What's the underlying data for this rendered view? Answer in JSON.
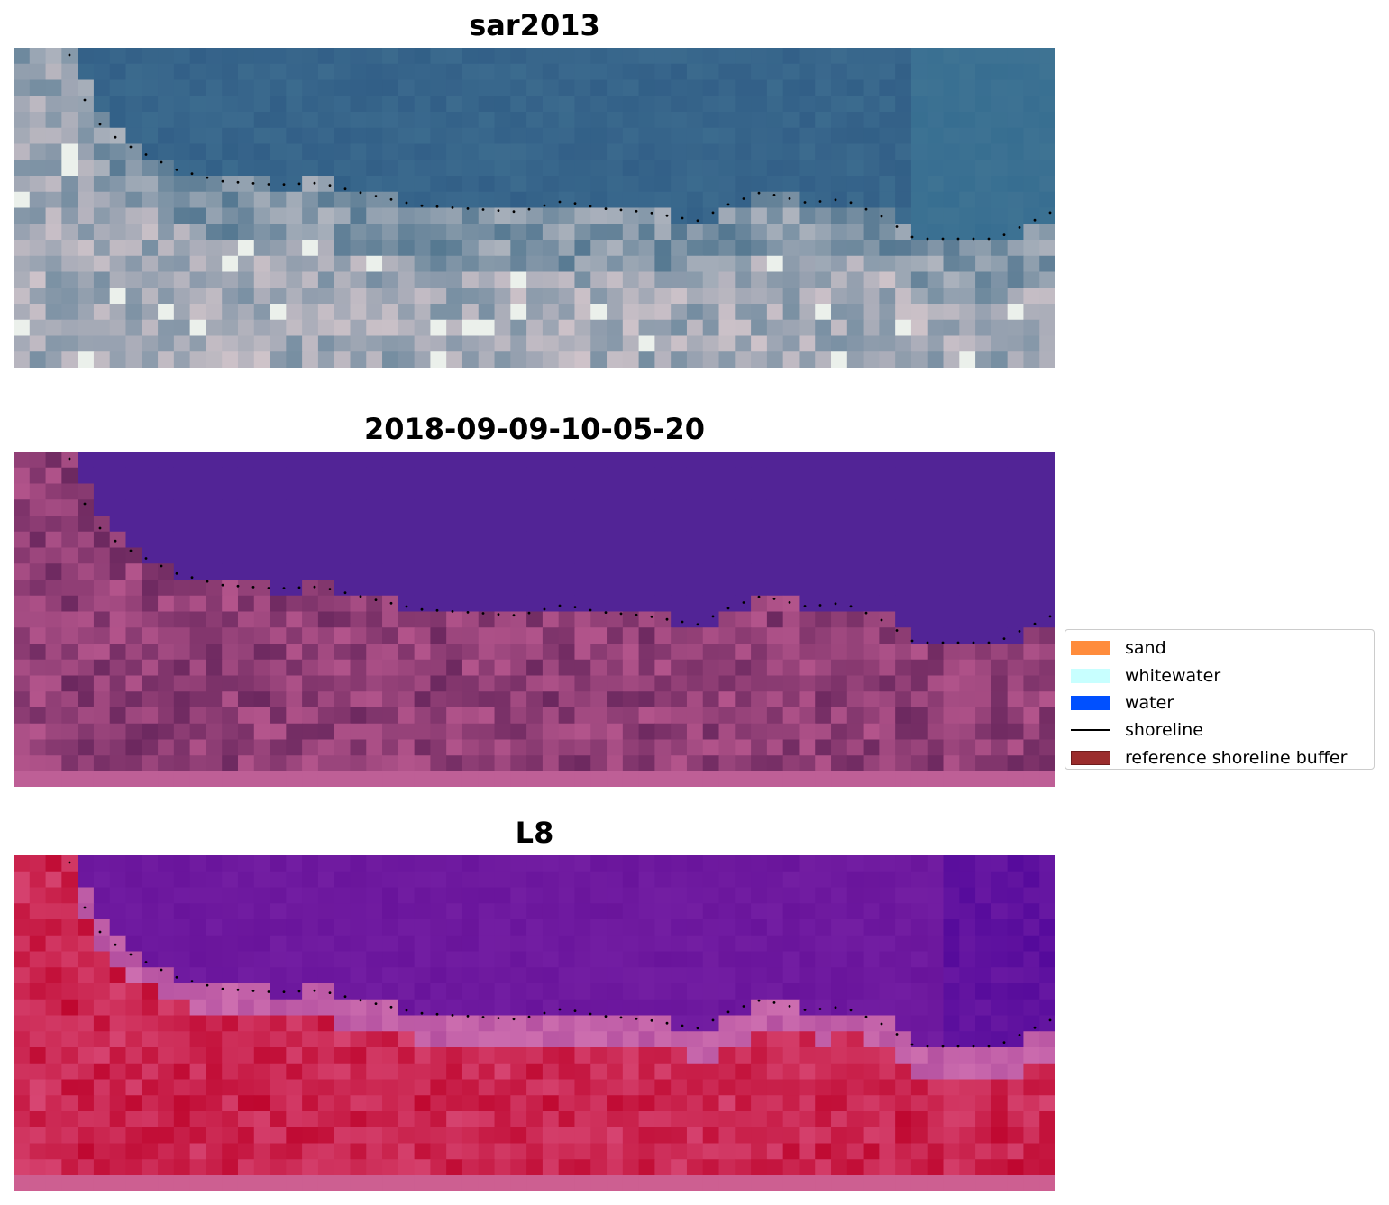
{
  "panels": [
    {
      "title": "sar2013",
      "theme": "rgb"
    },
    {
      "title": "2018-09-09-10-05-20",
      "theme": "classified"
    },
    {
      "title": "L8",
      "theme": "falsecolor"
    }
  ],
  "legend": {
    "items": [
      {
        "label": "sand",
        "color": "#ff8c3c",
        "kind": "patch"
      },
      {
        "label": "whitewater",
        "color": "#c8ffff",
        "kind": "patch"
      },
      {
        "label": "water",
        "color": "#0050ff",
        "kind": "patch"
      },
      {
        "label": "shoreline",
        "color": "#000000",
        "kind": "line"
      },
      {
        "label": "reference shoreline buffer",
        "color": "#9b2d2d",
        "kind": "patch"
      }
    ]
  }
}
